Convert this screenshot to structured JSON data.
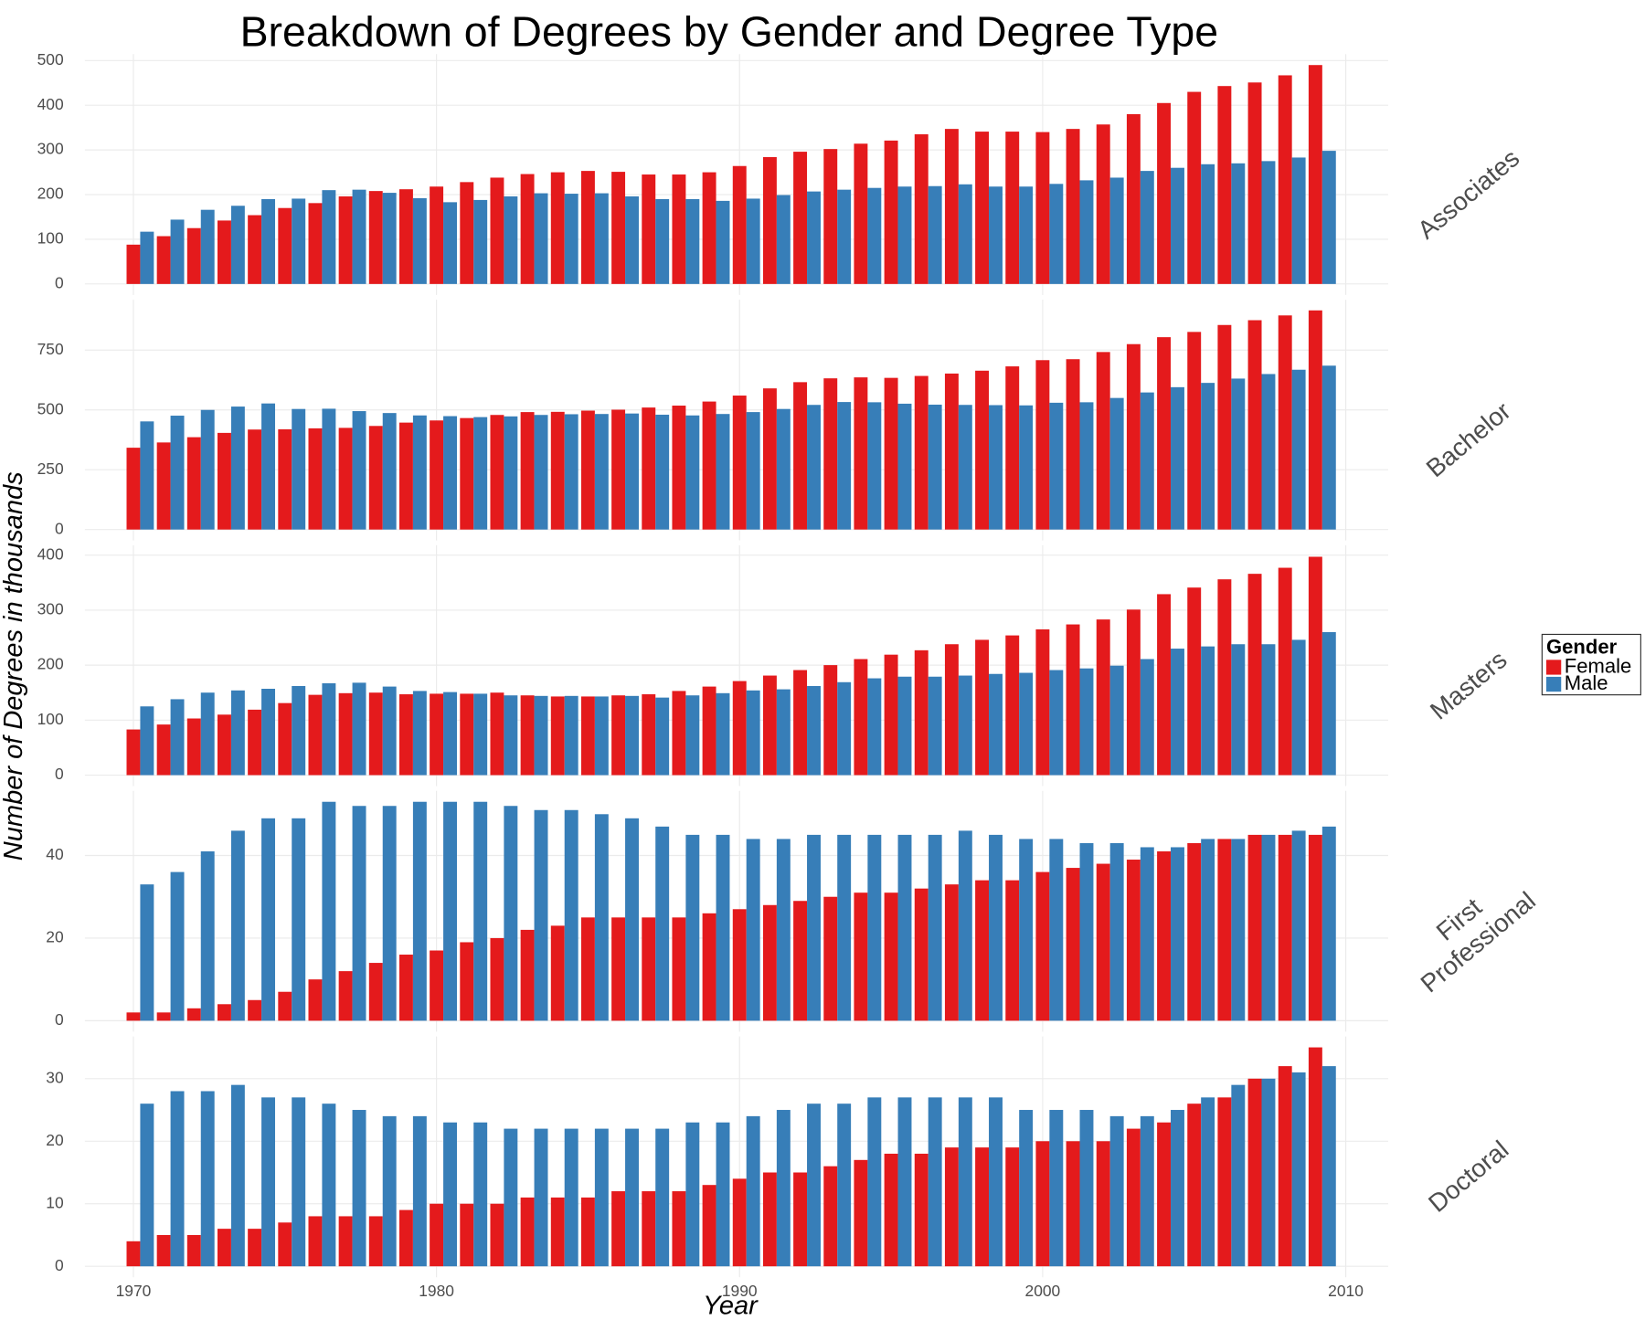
{
  "chart_data": {
    "type": "bar",
    "title": "Breakdown of Degrees by Gender and Degree Type",
    "xlabel": "Year",
    "ylabel": "Number of Degrees in thousands",
    "legend_title": "Gender",
    "legend_position": "right",
    "grid": true,
    "series": [
      {
        "name": "Female",
        "color": "#e41a1c"
      },
      {
        "name": "Male",
        "color": "#377eb8"
      }
    ],
    "x": [
      1970,
      1971,
      1972,
      1973,
      1974,
      1975,
      1976,
      1977,
      1978,
      1979,
      1980,
      1981,
      1982,
      1983,
      1984,
      1985,
      1986,
      1987,
      1988,
      1989,
      1990,
      1991,
      1992,
      1993,
      1994,
      1995,
      1996,
      1997,
      1998,
      1999,
      2000,
      2001,
      2002,
      2003,
      2004,
      2005,
      2006,
      2007,
      2008,
      2009
    ],
    "xlim": [
      1968.4,
      2011.4
    ],
    "xticks": [
      1970,
      1980,
      1990,
      2000,
      2010
    ],
    "facets": [
      {
        "label": "Associates",
        "ylim": [
          -24.5,
          514.5
        ],
        "yticks": [
          0,
          100,
          200,
          300,
          400,
          500
        ],
        "values": [
          [
            88,
            107,
            125,
            142,
            154,
            170,
            181,
            196,
            208,
            212,
            218,
            228,
            238,
            246,
            250,
            253,
            251,
            245,
            245,
            250,
            264,
            284,
            296,
            302,
            314,
            321,
            335,
            347,
            341,
            341,
            340,
            347,
            357,
            380,
            405,
            430,
            443,
            451,
            467,
            490
          ],
          [
            117,
            144,
            166,
            175,
            190,
            191,
            210,
            211,
            204,
            192,
            183,
            188,
            196,
            203,
            202,
            203,
            196,
            190,
            190,
            186,
            191,
            199,
            207,
            211,
            215,
            218,
            219,
            223,
            218,
            218,
            224,
            232,
            238,
            253,
            260,
            268,
            270,
            275,
            283,
            298
          ]
        ]
      },
      {
        "label": "Bachelor",
        "ylim": [
          -45.75,
          960.75
        ],
        "yticks": [
          0,
          250,
          500,
          750
        ],
        "values": [
          [
            342,
            364,
            386,
            404,
            418,
            419,
            423,
            425,
            433,
            447,
            456,
            466,
            479,
            491,
            492,
            497,
            501,
            510,
            518,
            535,
            560,
            590,
            616,
            632,
            636,
            634,
            642,
            652,
            664,
            682,
            708,
            712,
            742,
            775,
            804,
            826,
            855,
            875,
            895,
            916
          ],
          [
            452,
            476,
            500,
            514,
            527,
            504,
            505,
            495,
            487,
            477,
            474,
            470,
            473,
            479,
            482,
            483,
            485,
            480,
            477,
            483,
            491,
            504,
            521,
            533,
            532,
            526,
            522,
            521,
            520,
            519,
            530,
            532,
            550,
            573,
            595,
            613,
            631,
            650,
            668,
            685
          ]
        ]
      },
      {
        "label": "Masters",
        "ylim": [
          -19.9,
          417.9
        ],
        "yticks": [
          0,
          100,
          200,
          300,
          400
        ],
        "values": [
          [
            83,
            92,
            103,
            110,
            119,
            131,
            146,
            149,
            150,
            147,
            148,
            148,
            150,
            145,
            143,
            143,
            145,
            147,
            153,
            161,
            171,
            181,
            191,
            200,
            211,
            219,
            227,
            238,
            246,
            254,
            265,
            274,
            283,
            301,
            329,
            341,
            356,
            366,
            377,
            397
          ],
          [
            125,
            138,
            150,
            154,
            157,
            162,
            167,
            168,
            161,
            153,
            151,
            148,
            145,
            144,
            144,
            143,
            144,
            141,
            145,
            149,
            154,
            156,
            162,
            169,
            176,
            179,
            179,
            181,
            184,
            186,
            191,
            194,
            199,
            211,
            230,
            234,
            238,
            238,
            246,
            260
          ]
        ]
      },
      {
        "label": "First\nProfessional",
        "ylim": [
          -2.65,
          55.65
        ],
        "yticks": [
          0,
          20,
          40
        ],
        "values": [
          [
            2,
            2,
            3,
            4,
            5,
            7,
            10,
            12,
            14,
            16,
            17,
            19,
            20,
            22,
            23,
            25,
            25,
            25,
            25,
            26,
            27,
            28,
            29,
            30,
            31,
            31,
            32,
            33,
            34,
            34,
            36,
            37,
            38,
            39,
            41,
            43,
            44,
            45,
            45,
            45
          ],
          [
            33,
            36,
            41,
            46,
            49,
            49,
            53,
            52,
            52,
            53,
            53,
            53,
            52,
            51,
            51,
            50,
            49,
            47,
            45,
            45,
            44,
            44,
            45,
            45,
            45,
            45,
            45,
            46,
            45,
            44,
            44,
            43,
            43,
            42,
            42,
            44,
            44,
            45,
            46,
            47
          ]
        ]
      },
      {
        "label": "Doctoral",
        "ylim": [
          -1.75,
          36.75
        ],
        "yticks": [
          0,
          10,
          20,
          30
        ],
        "values": [
          [
            4,
            5,
            5,
            6,
            6,
            7,
            8,
            8,
            8,
            9,
            10,
            10,
            10,
            11,
            11,
            11,
            12,
            12,
            12,
            13,
            14,
            15,
            15,
            16,
            17,
            18,
            18,
            19,
            19,
            19,
            20,
            20,
            20,
            22,
            23,
            26,
            27,
            30,
            32,
            35
          ],
          [
            26,
            28,
            28,
            29,
            27,
            27,
            26,
            25,
            24,
            24,
            23,
            23,
            22,
            22,
            22,
            22,
            22,
            22,
            23,
            23,
            24,
            25,
            26,
            26,
            27,
            27,
            27,
            27,
            27,
            25,
            25,
            25,
            24,
            24,
            25,
            27,
            29,
            30,
            31,
            32
          ]
        ]
      }
    ]
  }
}
